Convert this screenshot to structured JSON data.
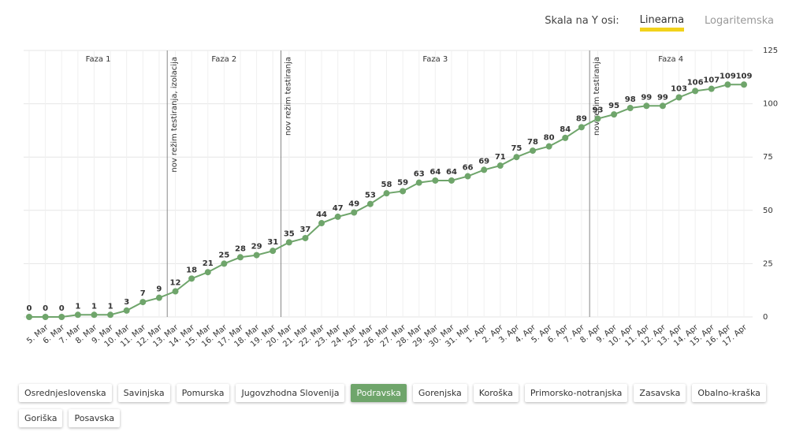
{
  "chart_data": {
    "type": "line",
    "categories": [
      null,
      "5. Mar",
      "6. Mar",
      "7. Mar",
      "8. Mar",
      "9. Mar",
      "10. Mar",
      "11. Mar",
      "12. Mar",
      "13. Mar",
      "14. Mar",
      "15. Mar",
      "16. Mar",
      "17. Mar",
      "18. Mar",
      "19. Mar",
      "20. Mar",
      "21. Mar",
      "22. Mar",
      "23. Mar",
      "24. Mar",
      "25. Mar",
      "26. Mar",
      "27. Mar",
      "28. Mar",
      "29. Mar",
      "30. Mar",
      "31. Mar",
      "1. Apr",
      "2. Apr",
      "3. Apr",
      "4. Apr",
      "5. Apr",
      "6. Apr",
      "7. Apr",
      "8. Apr",
      "9. Apr",
      "10. Apr",
      "11. Apr",
      "12. Apr",
      "13. Apr",
      "14. Apr",
      "15. Apr",
      "16. Apr",
      "17. Apr"
    ],
    "values": [
      0,
      0,
      0,
      1,
      1,
      1,
      3,
      7,
      9,
      12,
      18,
      21,
      25,
      28,
      29,
      31,
      35,
      37,
      44,
      47,
      49,
      53,
      58,
      59,
      63,
      64,
      64,
      66,
      69,
      71,
      75,
      78,
      80,
      84,
      89,
      93,
      95,
      98,
      99,
      99,
      103,
      106,
      107,
      109,
      109
    ],
    "color": "#6fa56b",
    "ylim": [
      0,
      125
    ],
    "yticks": [
      0,
      25,
      50,
      75,
      100,
      125
    ],
    "grid": true,
    "phases": [
      "Faza 1",
      "Faza 2",
      "Faza 3",
      "Faza 4"
    ],
    "annotations": [
      "nov režim testiranja, izolacija",
      "nov režim testiranja",
      "nov režim testiranja"
    ]
  },
  "scale_toggle": {
    "label": "Skala na Y osi:",
    "options": [
      "Linearna",
      "Logaritemska"
    ]
  },
  "regions": [
    "Osrednjeslovenska",
    "Savinjska",
    "Pomurska",
    "Jugovzhodna Slovenija",
    "Podravska",
    "Gorenjska",
    "Koroška",
    "Primorsko-notranjska",
    "Zasavska",
    "Obalno-kraška",
    "Goriška",
    "Posavska"
  ]
}
